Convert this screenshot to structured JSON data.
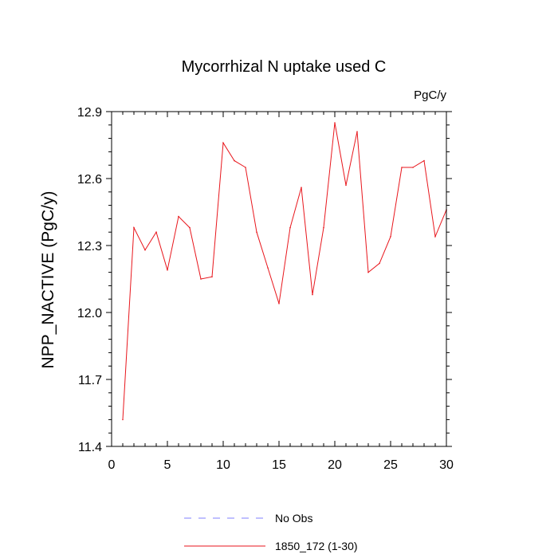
{
  "chart_data": {
    "type": "line",
    "title": "Mycorrhizal N uptake used C",
    "units_label": "PgC/y",
    "xlabel": "",
    "ylabel": "NPP_NACTIVE  (PgC/y)",
    "xlim": [
      0,
      30
    ],
    "ylim": [
      11.4,
      12.9
    ],
    "x_ticks": [
      0,
      5,
      10,
      15,
      20,
      25,
      30
    ],
    "x_tick_labels": [
      "0",
      "5",
      "10",
      "15",
      "20",
      "25",
      "30"
    ],
    "y_ticks": [
      11.4,
      11.7,
      12.0,
      12.3,
      12.6,
      12.9
    ],
    "y_tick_labels": [
      "11.4",
      "11.7",
      "12.0",
      "12.3",
      "12.6",
      "12.9"
    ],
    "grid": false,
    "legend_position": "bottom",
    "series": [
      {
        "name": "No Obs",
        "color": "#8080ff",
        "dash": "dashed",
        "x": [],
        "y": []
      },
      {
        "name": "1850_172 (1-30)",
        "color": "#e8161c",
        "dash": "solid",
        "x": [
          1,
          2,
          3,
          4,
          5,
          6,
          7,
          8,
          9,
          10,
          11,
          12,
          13,
          14,
          15,
          16,
          17,
          18,
          19,
          20,
          21,
          22,
          23,
          24,
          25,
          26,
          27,
          28,
          29,
          30
        ],
        "y": [
          11.52,
          12.38,
          12.28,
          12.36,
          12.19,
          12.43,
          12.38,
          12.15,
          12.16,
          12.76,
          12.68,
          12.65,
          12.36,
          12.2,
          12.04,
          12.38,
          12.56,
          12.08,
          12.38,
          12.85,
          12.57,
          12.81,
          12.18,
          12.22,
          12.34,
          12.65,
          12.65,
          12.68,
          12.34,
          12.46
        ]
      }
    ]
  }
}
